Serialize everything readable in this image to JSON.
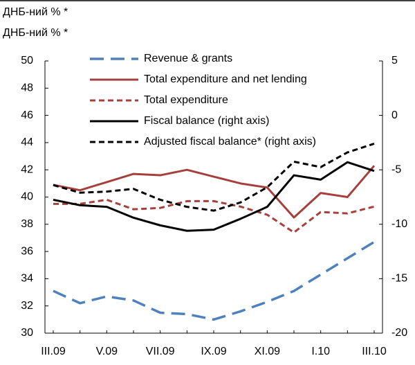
{
  "chart_data": {
    "type": "line",
    "title": "ДНБ-ний % *",
    "subtitle": "ДНБ-ний % *",
    "categories": [
      "III.09",
      null,
      "V.09",
      null,
      "VII.09",
      null,
      "IX.09",
      null,
      "XI.09",
      null,
      "I.10",
      null,
      "III.10"
    ],
    "series": [
      {
        "name": "Revenue & grants",
        "color": "#4f81bd",
        "dash": "long",
        "values": [
          33.1,
          32.2,
          32.7,
          32.4,
          31.5,
          31.4,
          31.0,
          31.6,
          32.3,
          33.1,
          34.3,
          35.5,
          36.7
        ]
      },
      {
        "name": "Total expenditure and net lending",
        "color": "#a5403c",
        "dash": "solid",
        "values": [
          40.9,
          40.5,
          41.1,
          41.7,
          41.6,
          42.0,
          41.5,
          41.0,
          40.7,
          38.5,
          40.3,
          40.0,
          42.3
        ]
      },
      {
        "name": "Total expenditure",
        "color": "#a5403c",
        "dash": "short",
        "values": [
          39.5,
          39.5,
          39.8,
          39.1,
          39.2,
          39.7,
          39.7,
          39.3,
          38.7,
          37.4,
          38.9,
          38.8,
          39.3
        ]
      },
      {
        "name": "Fiscal balance (right axis)",
        "color": "#000000",
        "dash": "solid",
        "axis": "y2",
        "values": [
          -7.75,
          -8.25,
          -8.4,
          -9.4,
          -10.1,
          -10.6,
          -10.5,
          -9.5,
          -8.4,
          -5.5,
          -5.9,
          -4.3,
          -5.1
        ]
      },
      {
        "name": "Adjusted fiscal balance* (right axis)",
        "color": "#000000",
        "dash": "short",
        "axis": "y2",
        "values": [
          -6.4,
          -7.1,
          -7.0,
          -6.75,
          -7.75,
          -8.4,
          -8.75,
          -8.0,
          -6.6,
          -4.25,
          -4.75,
          -3.4,
          -2.6
        ]
      }
    ],
    "ylim": [
      30,
      50
    ],
    "yticks": [
      30,
      32,
      34,
      36,
      38,
      40,
      42,
      44,
      46,
      48,
      50
    ],
    "y2lim": [
      -20,
      5
    ],
    "y2ticks": [
      -20,
      -15,
      -10,
      -5,
      0,
      5
    ],
    "grid": false,
    "legend": "top"
  }
}
